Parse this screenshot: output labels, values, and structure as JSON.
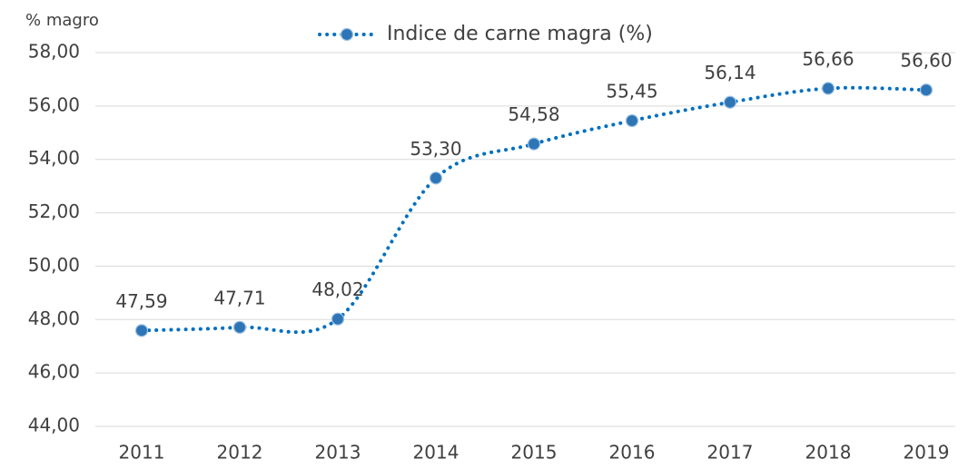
{
  "chart_data": {
    "type": "line",
    "y_axis_label": "% magro",
    "categories": [
      "2011",
      "2012",
      "2013",
      "2014",
      "2015",
      "2016",
      "2017",
      "2018",
      "2019"
    ],
    "series": [
      {
        "name": "Indice de carne magra (%)",
        "color": "#0070c0",
        "values": [
          47.59,
          47.71,
          48.02,
          53.3,
          54.58,
          55.45,
          56.14,
          56.66,
          56.6
        ],
        "value_labels": [
          "47,59",
          "47,71",
          "48,02",
          "53,30",
          "54,58",
          "55,45",
          "56,14",
          "56,66",
          "56,60"
        ]
      }
    ],
    "ylim": [
      44,
      58
    ],
    "yticks": [
      {
        "value": 44,
        "label": "44,00"
      },
      {
        "value": 46,
        "label": "46,00"
      },
      {
        "value": 48,
        "label": "48,00"
      },
      {
        "value": 50,
        "label": "50,00"
      },
      {
        "value": 52,
        "label": "52,00"
      },
      {
        "value": 54,
        "label": "54,00"
      },
      {
        "value": 56,
        "label": "56,00"
      },
      {
        "value": 58,
        "label": "58,00"
      }
    ],
    "grid": true,
    "legend": "top"
  }
}
